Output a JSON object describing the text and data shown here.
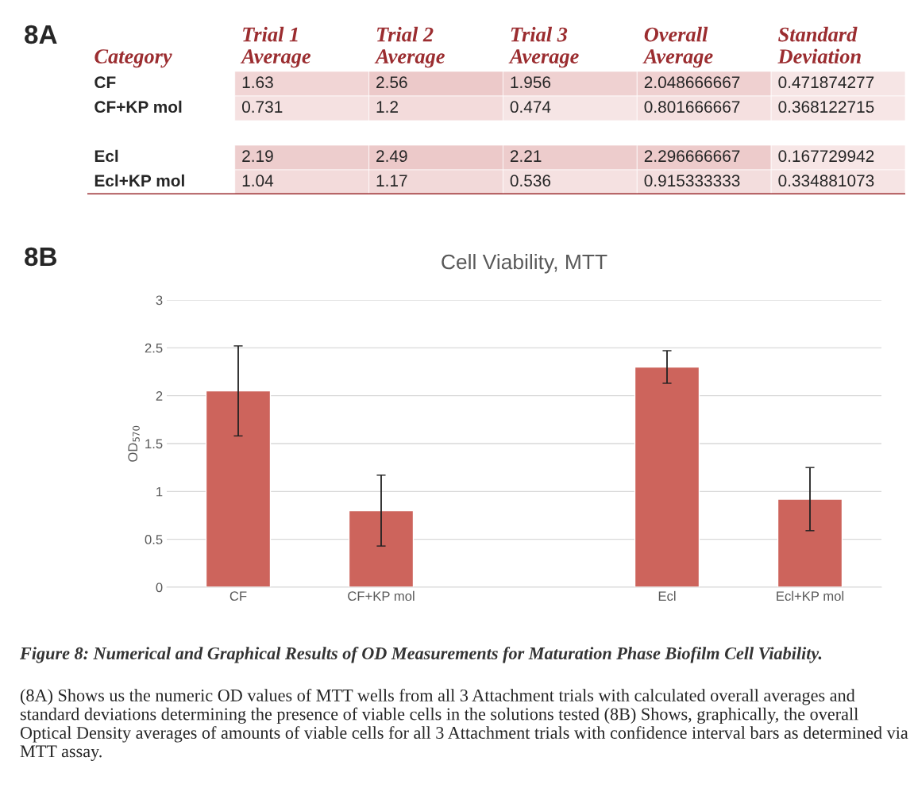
{
  "chart_data": [
    {
      "type": "heatmap",
      "ylabel": "Category",
      "categories": [
        "Trial 1\nAverage",
        "Trial 2\nAverage",
        "Trial 3\nAverage",
        "Overall\nAverage",
        "Standard\nDeviation"
      ],
      "y_categories": [
        "CF",
        "CF+KP mol"
      ],
      "cells": [
        [
          1.63,
          2.56,
          1.956,
          2.048666667,
          0.471874277
        ],
        [
          0.731,
          1.2,
          0.474,
          0.801666667,
          0.368122715
        ]
      ],
      "cell_labels": [
        [
          "1.63",
          "2.56",
          "1.956",
          "2.048666667",
          "0.471874277"
        ],
        [
          "0.731",
          "1.2",
          "0.474",
          "0.801666667",
          "0.368122715"
        ]
      ],
      "annotations": [
        "8A"
      ]
    },
    {
      "type": "heatmap",
      "categories": [
        null,
        null,
        null,
        null,
        null
      ],
      "y_categories": [
        "Ecl",
        "Ecl+KP mol"
      ],
      "cells": [
        [
          2.19,
          2.49,
          2.21,
          2.296666667,
          0.167729942
        ],
        [
          1.04,
          1.17,
          0.536,
          0.915333333,
          0.334881073
        ]
      ],
      "cell_labels": [
        [
          "2.19",
          "2.49",
          "2.21",
          "2.296666667",
          "0.167729942"
        ],
        [
          "1.04",
          "1.17",
          "0.536",
          "0.915333333",
          "0.334881073"
        ]
      ]
    },
    {
      "type": "bar",
      "title": "Cell Viability, MTT",
      "ylabel": "OD$_{570}$",
      "categories": [
        "CF",
        "CF+KP mol",
        null,
        "Ecl",
        "Ecl+KP mol"
      ],
      "values": [
        2.05,
        0.8,
        null,
        2.3,
        0.92
      ],
      "errors": [
        0.47,
        0.37,
        null,
        0.17,
        0.33
      ],
      "color": "#cd645c",
      "ylim": [
        0,
        3
      ],
      "yticks": [
        0,
        {
          "value": 0.5,
          "label": "0.5"
        },
        1,
        {
          "value": 1.5,
          "label": "1.5"
        },
        2,
        {
          "value": 2.5,
          "label": "2.5"
        },
        3
      ],
      "grid": "y",
      "annotations": [
        "8B",
        "Figure 8: Numerical and Graphical Results of OD Measurements for Maturation Phase Biofilm Cell Viability.",
        "(8A) Shows us the numeric OD values of MTT wells from all 3 Attachment trials with calculated overall averages and standard deviations determining the presence of viable cells in the solutions tested (8B) Shows, graphically, the overall Optical Density averages of amounts of viable cells for all 3 Attachment trials with confidence interval bars as determined via MTT assay."
      ]
    }
  ]
}
